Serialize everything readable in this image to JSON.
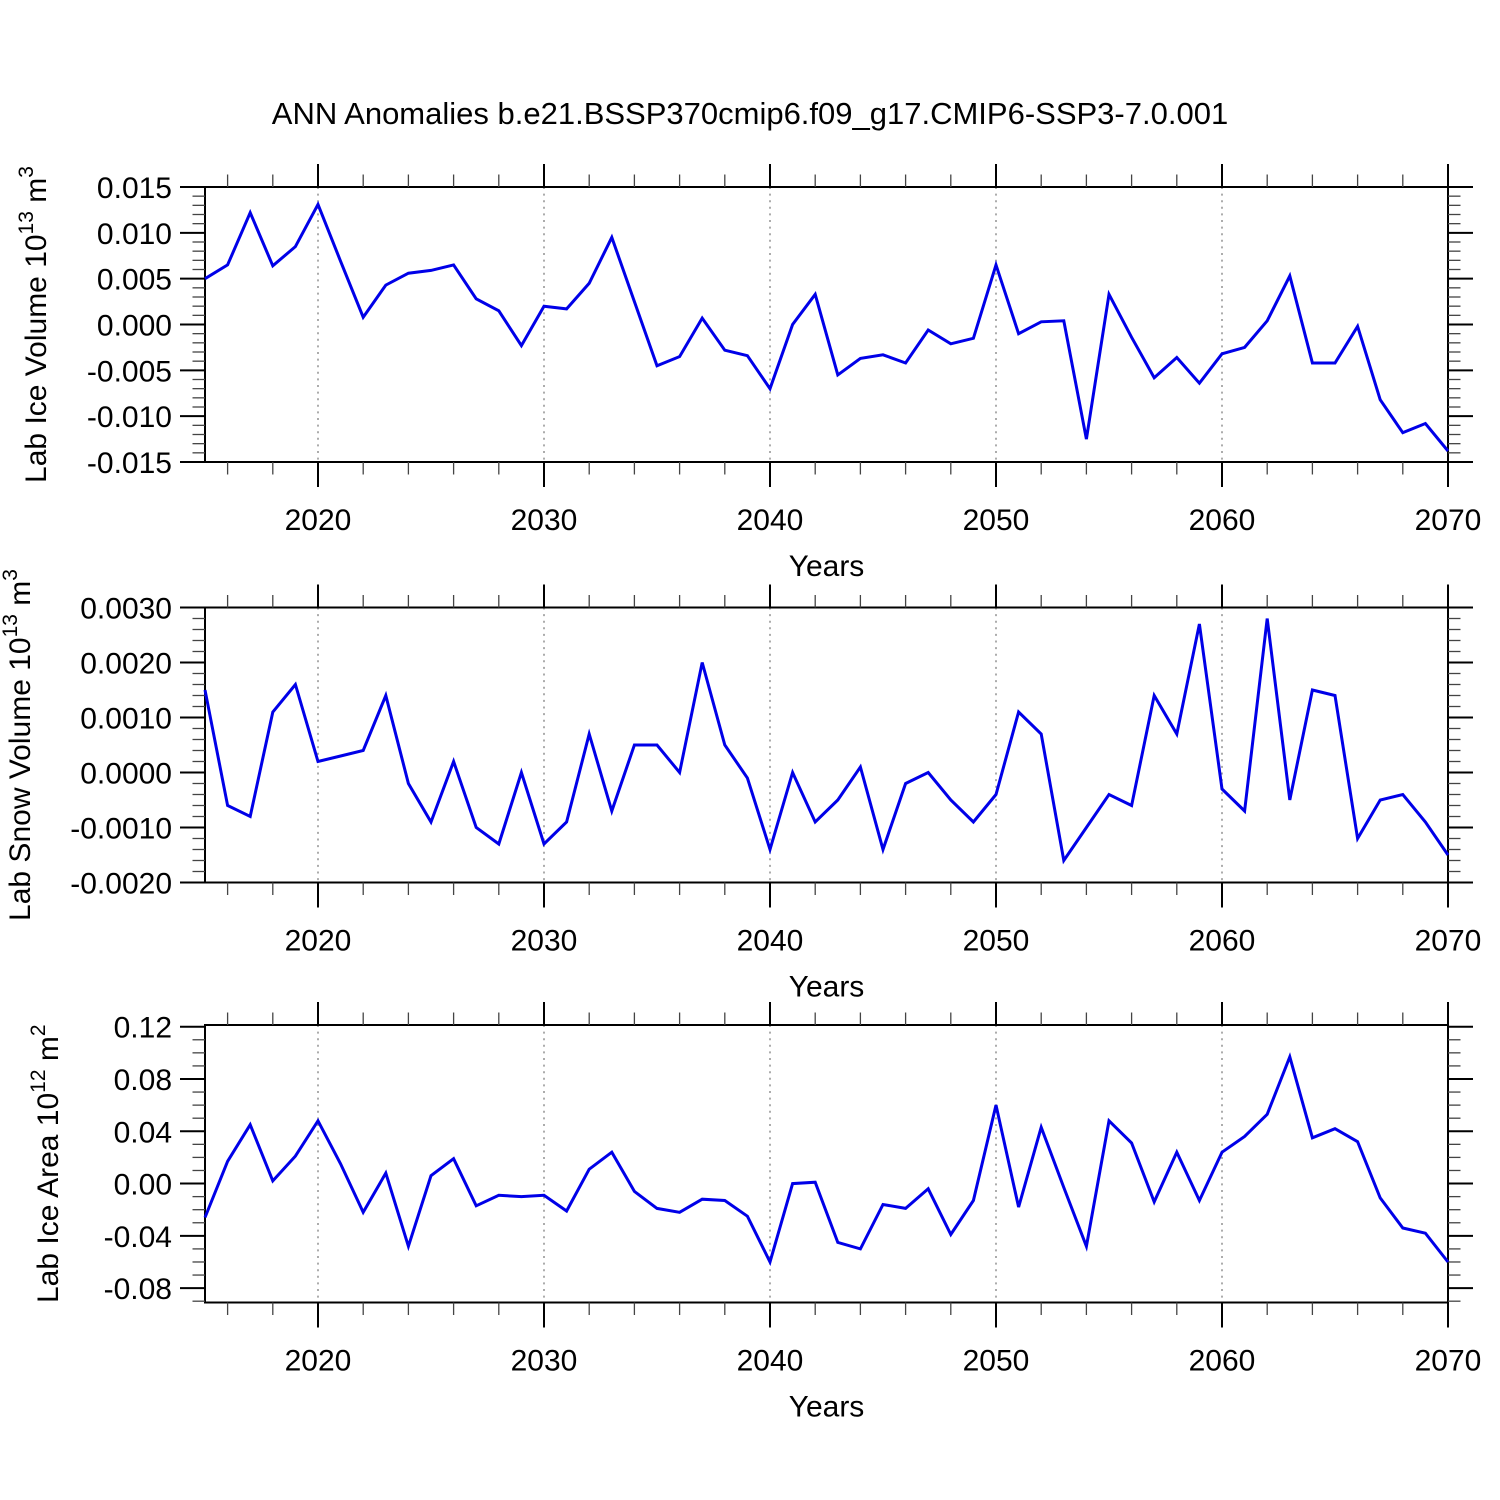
{
  "title": "ANN Anomalies b.e21.BSSP370cmip6.f09_g17.CMIP6-SSP3-7.0.001",
  "colors": {
    "line": "#0000e8",
    "grid": "#888888",
    "axis": "#000000",
    "minor_tick": "#444444",
    "text": "#000000"
  },
  "x_axis": {
    "label": "Years",
    "years": [
      2015,
      2016,
      2017,
      2018,
      2019,
      2020,
      2021,
      2022,
      2023,
      2024,
      2025,
      2026,
      2027,
      2028,
      2029,
      2030,
      2031,
      2032,
      2033,
      2034,
      2035,
      2036,
      2037,
      2038,
      2039,
      2040,
      2041,
      2042,
      2043,
      2044,
      2045,
      2046,
      2047,
      2048,
      2049,
      2050,
      2051,
      2052,
      2053,
      2054,
      2055,
      2056,
      2057,
      2058,
      2059,
      2060,
      2061,
      2062,
      2063,
      2064,
      2065,
      2066,
      2067,
      2068,
      2069,
      2070
    ],
    "major_ticks": [
      2020,
      2030,
      2040,
      2050,
      2060,
      2070
    ],
    "major_tick_labels": [
      "2020",
      "2030",
      "2040",
      "2050",
      "2060",
      "2070"
    ],
    "minor_step": 2,
    "grid_years": [
      2020,
      2030,
      2040,
      2050,
      2060
    ]
  },
  "chart_data": [
    {
      "type": "line",
      "name": "lab-ice-volume",
      "ylabel": "Lab Ice Volume 10^13 m^3",
      "ylabel_parts": [
        {
          "t": "Lab Ice Volume 10"
        },
        {
          "t": "13",
          "sup": true
        },
        {
          "t": " m"
        },
        {
          "t": "3",
          "sup": true
        }
      ],
      "xlabel": "Years",
      "ylim": [
        -0.015,
        0.015
      ],
      "ytick_values": [
        0.015,
        0.01,
        0.005,
        0.0,
        -0.005,
        -0.01,
        -0.015
      ],
      "ytick_labels": [
        "0.015",
        "0.010",
        "0.005",
        "0.000",
        "-0.005",
        "-0.010",
        "-0.015"
      ],
      "yminor_step": 0.001,
      "values": [
        0.005,
        0.0065,
        0.0122,
        0.0064,
        0.0085,
        0.0131,
        0.0069,
        0.0008,
        0.0043,
        0.0056,
        0.0059,
        0.0065,
        0.0028,
        0.0015,
        -0.0023,
        0.002,
        0.0017,
        0.0045,
        0.0095,
        0.0025,
        -0.0045,
        -0.0035,
        0.0007,
        -0.0028,
        -0.0034,
        -0.007,
        0.0,
        0.0033,
        -0.0055,
        -0.0037,
        -0.0033,
        -0.0042,
        -0.0006,
        -0.0021,
        -0.0015,
        0.0065,
        -0.001,
        0.0003,
        0.0004,
        -0.0125,
        0.0033,
        -0.0014,
        -0.0058,
        -0.0036,
        -0.0064,
        -0.0032,
        -0.0025,
        0.0004,
        0.0053,
        -0.0042,
        -0.0042,
        -0.0002,
        -0.0082,
        -0.0118,
        -0.0108,
        -0.0138
      ]
    },
    {
      "type": "line",
      "name": "lab-snow-volume",
      "ylabel": "Lab Snow Volume 10^13 m^3",
      "ylabel_parts": [
        {
          "t": "Lab Snow Volume 10"
        },
        {
          "t": "13",
          "sup": true
        },
        {
          "t": " m"
        },
        {
          "t": "3",
          "sup": true
        }
      ],
      "xlabel": "Years",
      "ylim": [
        -0.002,
        0.003
      ],
      "ytick_values": [
        0.003,
        0.002,
        0.001,
        0.0,
        -0.001,
        -0.002
      ],
      "ytick_labels": [
        "0.0030",
        "0.0020",
        "0.0010",
        "0.0000",
        "-0.0010",
        "-0.0020"
      ],
      "yminor_step": 0.0002,
      "values": [
        0.0015,
        -0.0006,
        -0.0008,
        0.0011,
        0.0016,
        0.0002,
        0.0003,
        0.0004,
        0.0014,
        -0.0002,
        -0.0009,
        0.0002,
        -0.001,
        -0.0013,
        0.0,
        -0.0013,
        -0.0009,
        0.0007,
        -0.0007,
        0.0005,
        0.0005,
        0.0,
        0.002,
        0.0005,
        -0.0001,
        -0.0014,
        0.0,
        -0.0009,
        -0.0005,
        0.0001,
        -0.0014,
        -0.0002,
        0.0,
        -0.0005,
        -0.0009,
        -0.0004,
        0.0011,
        0.0007,
        -0.0016,
        -0.001,
        -0.0004,
        -0.0006,
        0.0014,
        0.0007,
        0.0027,
        -0.0003,
        -0.0007,
        0.0028,
        -0.0005,
        0.0015,
        0.0014,
        -0.0012,
        -0.0005,
        -0.0004,
        -0.0009,
        -0.0015
      ]
    },
    {
      "type": "line",
      "name": "lab-ice-area",
      "ylabel": "Lab Ice Area 10^12 m^2",
      "ylabel_parts": [
        {
          "t": "Lab Ice Area 10"
        },
        {
          "t": "12",
          "sup": true
        },
        {
          "t": " m"
        },
        {
          "t": "2",
          "sup": true
        }
      ],
      "xlabel": "Years",
      "ylim": [
        -0.091,
        0.1213
      ],
      "ytick_values": [
        0.12,
        0.08,
        0.04,
        0.0,
        -0.04,
        -0.08
      ],
      "ytick_labels": [
        "0.12",
        "0.08",
        "0.04",
        "0.00",
        "-0.04",
        "-0.08"
      ],
      "yminor_step": 0.01,
      "values": [
        -0.026,
        0.017,
        0.045,
        0.002,
        0.021,
        0.048,
        0.015,
        -0.022,
        0.008,
        -0.048,
        0.006,
        0.019,
        -0.017,
        -0.009,
        -0.01,
        -0.009,
        -0.021,
        0.011,
        0.024,
        -0.006,
        -0.019,
        -0.022,
        -0.012,
        -0.013,
        -0.025,
        -0.06,
        0.0,
        0.001,
        -0.045,
        -0.05,
        -0.016,
        -0.019,
        -0.004,
        -0.039,
        -0.013,
        0.06,
        -0.018,
        0.043,
        -0.003,
        -0.048,
        0.048,
        0.031,
        -0.014,
        0.024,
        -0.013,
        0.024,
        0.036,
        0.053,
        0.097,
        0.035,
        0.042,
        0.032,
        -0.011,
        -0.034,
        -0.038,
        -0.06
      ]
    }
  ]
}
